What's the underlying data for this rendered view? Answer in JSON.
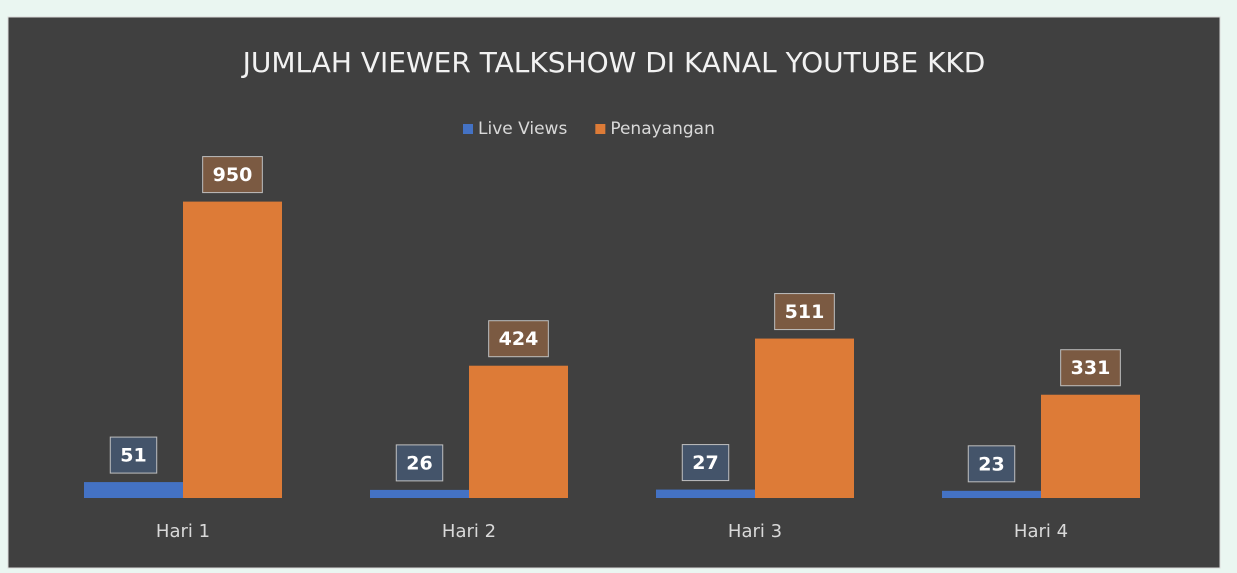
{
  "chart_data": {
    "type": "bar",
    "title": "JUMLAH VIEWER TALKSHOW DI KANAL YOUTUBE KKD",
    "categories": [
      "Hari 1",
      "Hari 2",
      "Hari 3",
      "Hari 4"
    ],
    "series": [
      {
        "name": "Live Views",
        "color": "#4472c4",
        "values": [
          51,
          26,
          27,
          23
        ]
      },
      {
        "name": "Penayangan",
        "color": "#dd7b37",
        "values": [
          950,
          424,
          511,
          331
        ]
      }
    ],
    "ylim": [
      0,
      1000
    ],
    "legend": "top",
    "grid": false
  }
}
